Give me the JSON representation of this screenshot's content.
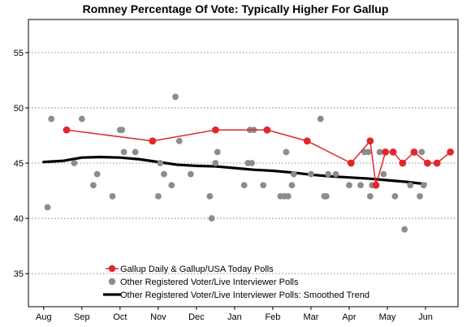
{
  "chart_data": {
    "type": "scatter",
    "title": "Romney Percentage Of Vote: Typically Higher For Gallup",
    "xlabel": "",
    "ylabel": "",
    "x_ticks": [
      "Aug",
      "Sep",
      "Oct",
      "Nov",
      "Dec",
      "Jan",
      "Feb",
      "Mar",
      "Apr",
      "May",
      "Jun"
    ],
    "y_ticks": [
      35,
      40,
      45,
      50,
      55
    ],
    "xlim": [
      -0.4,
      10.85
    ],
    "ylim": [
      32,
      58
    ],
    "grid": "horizontal dotted",
    "legend_position": "bottom-left",
    "colors": {
      "gallup": "#e0282c",
      "other": "#8c8c8c",
      "trend": "#000000"
    },
    "series": [
      {
        "name": "Gallup Daily & Gallup/USA Today Polls",
        "kind": "line-with-markers",
        "x": [
          0.6,
          2.85,
          4.5,
          5.85,
          6.9,
          8.05,
          8.55,
          8.7,
          8.95,
          9.15,
          9.4,
          9.7,
          10.05,
          10.3,
          10.65
        ],
        "y": [
          48,
          47,
          48,
          48,
          47,
          45,
          47,
          43,
          46,
          46,
          45,
          46,
          45,
          45,
          46
        ]
      },
      {
        "name": "Other Registered Voter/Live Interviewer Polls",
        "kind": "scatter",
        "x": [
          0.1,
          0.2,
          0.8,
          1.0,
          1.3,
          1.4,
          1.8,
          2.0,
          2.05,
          2.1,
          2.4,
          3.0,
          3.05,
          3.15,
          3.35,
          3.45,
          3.55,
          3.85,
          4.35,
          4.4,
          4.5,
          4.55,
          5.25,
          5.35,
          5.4,
          5.45,
          5.5,
          5.75,
          6.2,
          6.3,
          6.35,
          6.4,
          6.5,
          6.55,
          7.0,
          7.25,
          7.35,
          7.4,
          7.45,
          7.65,
          8.0,
          8.3,
          8.4,
          8.5,
          8.55,
          8.6,
          8.8,
          8.9,
          9.2,
          9.45,
          9.6,
          9.85,
          9.9,
          9.95
        ],
        "y": [
          41,
          49,
          45,
          49,
          43,
          44,
          42,
          48,
          48,
          46,
          46,
          42,
          45,
          44,
          43,
          51,
          47,
          44,
          42,
          40,
          45,
          46,
          43,
          45,
          48,
          45,
          48,
          43,
          42,
          42,
          46,
          42,
          43,
          44,
          44,
          49,
          42,
          42,
          44,
          44,
          43,
          43,
          46,
          46,
          42,
          43,
          46,
          44,
          42,
          39,
          43,
          42,
          46,
          43
        ]
      },
      {
        "name": "Other Registered Voter/Live Interviewer Polls: Smoothed Trend",
        "kind": "line",
        "x": [
          0,
          0.5,
          1.0,
          1.5,
          2.0,
          2.5,
          3.0,
          3.5,
          4.0,
          4.5,
          5.0,
          5.5,
          6.0,
          6.5,
          7.0,
          7.5,
          8.0,
          8.5,
          9.0,
          9.5,
          10.0
        ],
        "y": [
          45.1,
          45.2,
          45.5,
          45.55,
          45.5,
          45.35,
          45.1,
          44.85,
          44.75,
          44.7,
          44.55,
          44.4,
          44.3,
          44.15,
          43.95,
          43.8,
          43.7,
          43.6,
          43.45,
          43.3,
          43.1
        ]
      }
    ]
  }
}
